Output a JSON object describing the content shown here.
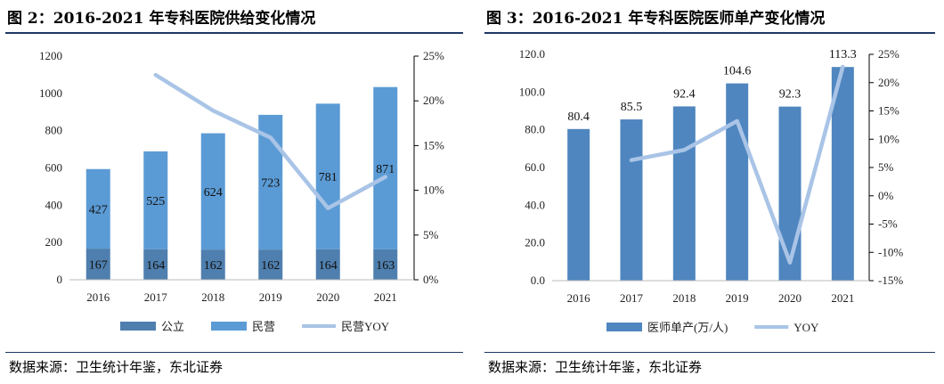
{
  "source_label": "数据来源：卫生统计年鉴，东北证券",
  "chart_data": [
    {
      "type": "bar",
      "stacked": true,
      "title": "图 2：2016-2021 年专科医院供给变化情况",
      "categories": [
        "2016",
        "2017",
        "2018",
        "2019",
        "2020",
        "2021"
      ],
      "series": [
        {
          "name": "公立",
          "axis": "left",
          "color": "#4f7fae",
          "values": [
            167,
            164,
            162,
            162,
            164,
            163
          ]
        },
        {
          "name": "民营",
          "axis": "left",
          "color": "#5b9bd5",
          "values": [
            427,
            525,
            624,
            723,
            781,
            871
          ]
        },
        {
          "name": "民营YOY",
          "type": "line",
          "axis": "right",
          "color": "#a9c4e6",
          "values": [
            null,
            22.9,
            18.9,
            15.9,
            8.0,
            11.5
          ]
        }
      ],
      "left_axis": {
        "ylim": [
          0,
          1200
        ],
        "ticks": [
          "0",
          "200",
          "400",
          "600",
          "800",
          "1000",
          "1200"
        ]
      },
      "right_axis": {
        "ylim": [
          0,
          25
        ],
        "ticks": [
          "0%",
          "5%",
          "10%",
          "15%",
          "20%",
          "25%"
        ]
      },
      "grid": false,
      "legend": "bottom"
    },
    {
      "type": "bar",
      "title": "图 3：2016-2021 年专科医院医师单产变化情况",
      "categories": [
        "2016",
        "2017",
        "2018",
        "2019",
        "2020",
        "2021"
      ],
      "series": [
        {
          "name": "医师单产(万/人)",
          "axis": "left",
          "color": "#4f86bf",
          "values": [
            80.4,
            85.5,
            92.4,
            104.6,
            92.3,
            113.3
          ]
        },
        {
          "name": "YOY",
          "type": "line",
          "axis": "right",
          "color": "#a9c4e6",
          "values": [
            null,
            6.3,
            8.1,
            13.2,
            -11.8,
            22.8
          ]
        }
      ],
      "left_axis": {
        "ylim": [
          0,
          120
        ],
        "ticks": [
          "0.0",
          "20.0",
          "40.0",
          "60.0",
          "80.0",
          "100.0",
          "120.0"
        ]
      },
      "right_axis": {
        "ylim": [
          -15,
          25
        ],
        "ticks": [
          "-15%",
          "-10%",
          "-5%",
          "0%",
          "5%",
          "10%",
          "15%",
          "20%",
          "25%"
        ]
      },
      "grid": false,
      "legend": "bottom"
    }
  ]
}
